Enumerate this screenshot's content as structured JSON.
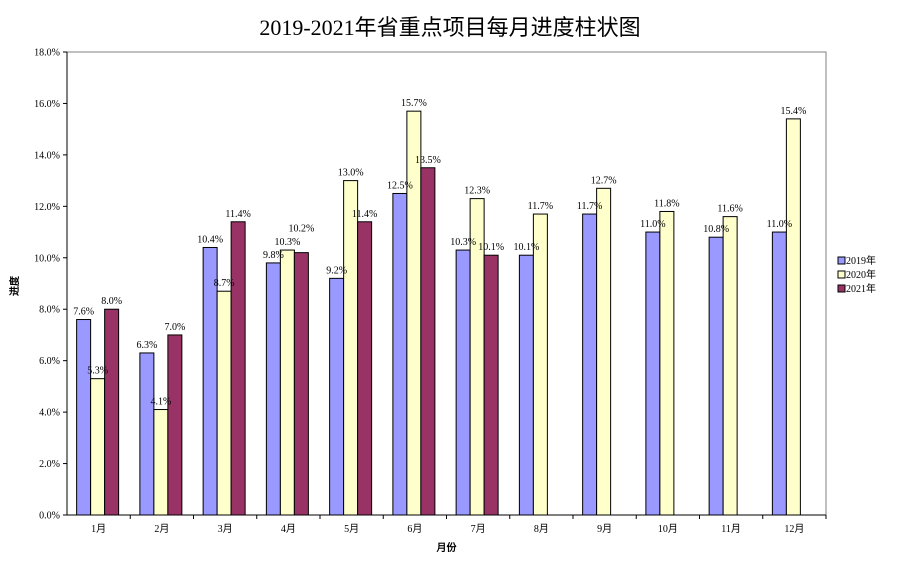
{
  "chart_data": {
    "type": "bar",
    "title": "2019-2021年省重点项目每月进度柱状图",
    "xlabel": "月份",
    "ylabel": "进度",
    "ylim": [
      0,
      18
    ],
    "yticks": [
      "0.0%",
      "2.0%",
      "4.0%",
      "6.0%",
      "8.0%",
      "10.0%",
      "12.0%",
      "14.0%",
      "16.0%",
      "18.0%"
    ],
    "categories": [
      "1月",
      "2月",
      "3月",
      "4月",
      "5月",
      "6月",
      "7月",
      "8月",
      "9月",
      "10月",
      "11月",
      "12月"
    ],
    "series": [
      {
        "name": "2019年",
        "color": "#9999FF",
        "values": [
          7.6,
          6.3,
          10.4,
          9.8,
          9.2,
          12.5,
          10.3,
          10.1,
          11.7,
          11.0,
          10.8,
          11.0
        ],
        "labels": [
          "7.6%",
          "6.3%",
          "10.4%",
          "9.8%",
          "9.2%",
          "12.5%",
          "10.3%",
          "10.1%",
          "11.7%",
          "11.0%",
          "10.8%",
          "11.0%"
        ]
      },
      {
        "name": "2020年",
        "color": "#FFFFCC",
        "values": [
          5.3,
          4.1,
          8.7,
          10.3,
          13.0,
          15.7,
          12.3,
          11.7,
          12.7,
          11.8,
          11.6,
          15.4
        ],
        "labels": [
          "5.3%",
          "4.1%",
          "8.7%",
          "10.3%",
          "13.0%",
          "15.7%",
          "12.3%",
          "11.7%",
          "12.7%",
          "11.8%",
          "11.6%",
          "15.4%"
        ]
      },
      {
        "name": "2021年",
        "color": "#993366",
        "values": [
          8.0,
          7.0,
          11.4,
          10.2,
          11.4,
          13.5,
          10.1,
          null,
          null,
          null,
          null,
          null
        ],
        "labels": [
          "8.0%",
          "7.0%",
          "11.4%",
          "10.2%",
          "11.4%",
          "13.5%",
          "10.1%",
          null,
          null,
          null,
          null,
          null
        ]
      }
    ],
    "grid": false,
    "legend": "right"
  }
}
